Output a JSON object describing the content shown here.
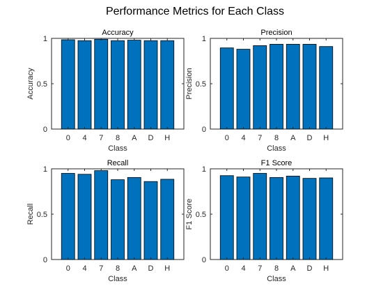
{
  "figure": {
    "title": "Performance Metrics for Each Class"
  },
  "colors": {
    "bar_fill": "#0072BD",
    "bar_edge": "#000000",
    "axis": "#262626"
  },
  "chart_data": [
    {
      "type": "bar",
      "title": "Accuracy",
      "xlabel": "Class",
      "ylabel": "Accuracy",
      "categories": [
        "0",
        "4",
        "7",
        "8",
        "A",
        "D",
        "H"
      ],
      "values": [
        0.985,
        0.975,
        0.99,
        0.975,
        0.98,
        0.975,
        0.975
      ],
      "ylim": [
        0,
        1
      ],
      "yticks": [
        0,
        0.5,
        1
      ],
      "ytick_labels": [
        "0",
        "0.5",
        "1"
      ],
      "grid": false
    },
    {
      "type": "bar",
      "title": "Precision",
      "xlabel": "Class",
      "ylabel": "Precision",
      "categories": [
        "0",
        "4",
        "7",
        "8",
        "A",
        "D",
        "H"
      ],
      "values": [
        0.895,
        0.88,
        0.92,
        0.935,
        0.935,
        0.935,
        0.91
      ],
      "ylim": [
        0,
        1
      ],
      "yticks": [
        0,
        0.5,
        1
      ],
      "ytick_labels": [
        "0",
        "0.5",
        "1"
      ],
      "grid": false
    },
    {
      "type": "bar",
      "title": "Recall",
      "xlabel": "Class",
      "ylabel": "Recall",
      "categories": [
        "0",
        "4",
        "7",
        "8",
        "A",
        "D",
        "H"
      ],
      "values": [
        0.95,
        0.94,
        0.98,
        0.88,
        0.905,
        0.86,
        0.885
      ],
      "ylim": [
        0,
        1
      ],
      "yticks": [
        0,
        0.5,
        1
      ],
      "ytick_labels": [
        "0",
        "0.5",
        "1"
      ],
      "grid": false
    },
    {
      "type": "bar",
      "title": "F1 Score",
      "xlabel": "Class",
      "ylabel": "F1 Score",
      "categories": [
        "0",
        "4",
        "7",
        "8",
        "A",
        "D",
        "H"
      ],
      "values": [
        0.925,
        0.91,
        0.95,
        0.905,
        0.92,
        0.895,
        0.9
      ],
      "ylim": [
        0,
        1
      ],
      "yticks": [
        0,
        0.5,
        1
      ],
      "ytick_labels": [
        "0",
        "0.5",
        "1"
      ],
      "grid": false
    }
  ]
}
